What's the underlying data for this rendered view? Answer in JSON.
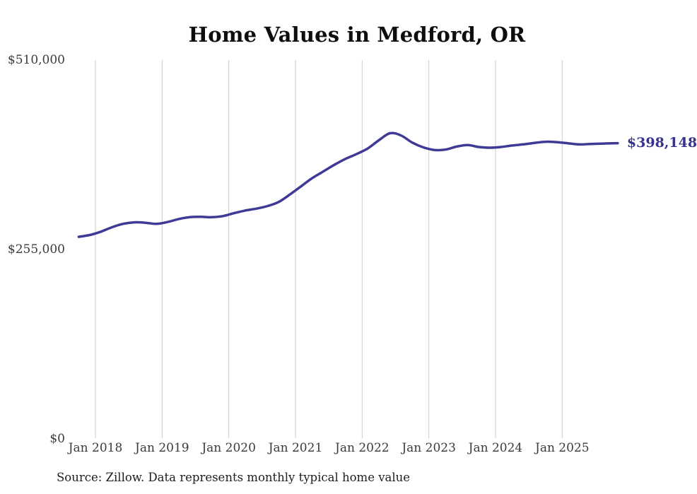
{
  "title": "Home Values in Medford, OR",
  "source_note": "Source: Zillow. Data represents monthly typical home value",
  "colors": {
    "background": "#ffffff",
    "line": "#3e3a96",
    "latest_value_label": "#36328e",
    "gridline": "#cccccc",
    "tick_text": "#3b3b3b",
    "title_text": "#0e0e0e",
    "source_text": "#1e1e1e"
  },
  "chart_data": {
    "type": "line",
    "title": "Home Values in Medford, OR",
    "xlabel": "",
    "ylabel": "",
    "ylim": [
      0,
      510000
    ],
    "grid": "vertical-only",
    "legend": "none",
    "y_ticks": [
      {
        "value": 0,
        "label": "$0"
      },
      {
        "value": 255000,
        "label": "$255,000"
      },
      {
        "value": 510000,
        "label": "$510,000"
      }
    ],
    "x_ticks": [
      {
        "date": "2018-01",
        "label": "Jan 2018"
      },
      {
        "date": "2019-01",
        "label": "Jan 2019"
      },
      {
        "date": "2020-01",
        "label": "Jan 2020"
      },
      {
        "date": "2021-01",
        "label": "Jan 2021"
      },
      {
        "date": "2022-01",
        "label": "Jan 2022"
      },
      {
        "date": "2023-01",
        "label": "Jan 2023"
      },
      {
        "date": "2024-01",
        "label": "Jan 2024"
      },
      {
        "date": "2025-01",
        "label": "Jan 2025"
      }
    ],
    "last_value": 398148,
    "last_value_label": "$398,148",
    "series": [
      {
        "name": "Monthly typical home value",
        "points": [
          [
            "2017-10",
            272000
          ],
          [
            "2017-12",
            274500
          ],
          [
            "2018-02",
            279000
          ],
          [
            "2018-04",
            285000
          ],
          [
            "2018-06",
            289500
          ],
          [
            "2018-08",
            291500
          ],
          [
            "2018-10",
            291000
          ],
          [
            "2018-12",
            289500
          ],
          [
            "2019-02",
            292000
          ],
          [
            "2019-04",
            296000
          ],
          [
            "2019-06",
            298500
          ],
          [
            "2019-08",
            299000
          ],
          [
            "2019-10",
            298500
          ],
          [
            "2019-12",
            300000
          ],
          [
            "2020-02",
            304000
          ],
          [
            "2020-04",
            307500
          ],
          [
            "2020-06",
            310000
          ],
          [
            "2020-08",
            313500
          ],
          [
            "2020-10",
            319000
          ],
          [
            "2020-12",
            329000
          ],
          [
            "2021-02",
            340000
          ],
          [
            "2021-04",
            351000
          ],
          [
            "2021-06",
            360000
          ],
          [
            "2021-08",
            369000
          ],
          [
            "2021-10",
            377000
          ],
          [
            "2021-12",
            383500
          ],
          [
            "2022-02",
            391000
          ],
          [
            "2022-04",
            402000
          ],
          [
            "2022-06",
            411500
          ],
          [
            "2022-08",
            408500
          ],
          [
            "2022-10",
            399000
          ],
          [
            "2022-12",
            392500
          ],
          [
            "2023-02",
            389000
          ],
          [
            "2023-04",
            389500
          ],
          [
            "2023-06",
            393500
          ],
          [
            "2023-08",
            395500
          ],
          [
            "2023-10",
            393000
          ],
          [
            "2023-12",
            392000
          ],
          [
            "2024-02",
            393000
          ],
          [
            "2024-04",
            395000
          ],
          [
            "2024-06",
            396500
          ],
          [
            "2024-08",
            398500
          ],
          [
            "2024-10",
            400000
          ],
          [
            "2024-12",
            399500
          ],
          [
            "2025-02",
            398000
          ],
          [
            "2025-04",
            396500
          ],
          [
            "2025-06",
            397000
          ],
          [
            "2025-08",
            397500
          ],
          [
            "2025-10",
            398000
          ],
          [
            "2025-11",
            398148
          ]
        ]
      }
    ]
  }
}
